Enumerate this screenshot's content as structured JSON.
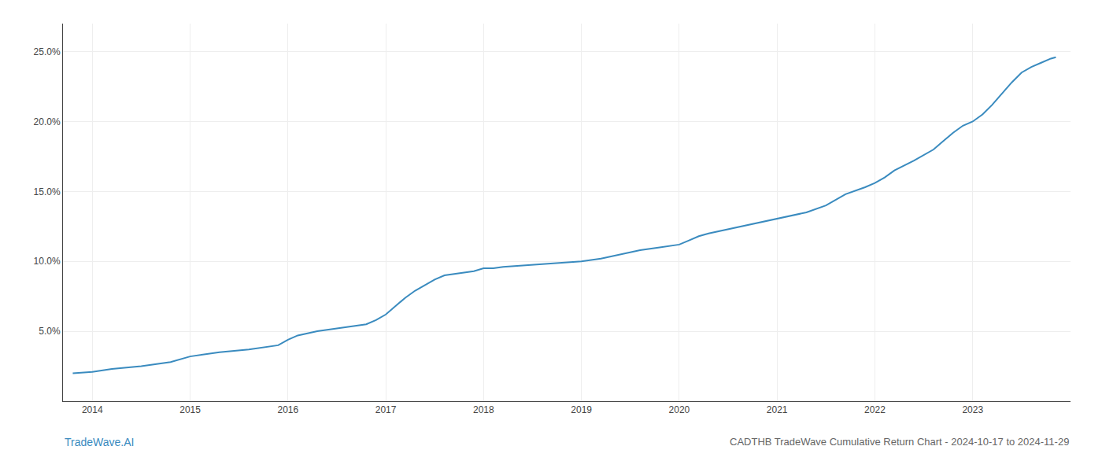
{
  "chart_data": {
    "type": "line",
    "title": "CADTHB TradeWave Cumulative Return Chart - 2024-10-17 to 2024-11-29",
    "annotations": [
      "TradeWave.AI"
    ],
    "color": "#3a8bbf",
    "x": [
      2013.8,
      2014.0,
      2014.2,
      2014.5,
      2014.8,
      2015.0,
      2015.3,
      2015.6,
      2015.9,
      2016.0,
      2016.1,
      2016.3,
      2016.6,
      2016.8,
      2016.9,
      2017.0,
      2017.1,
      2017.2,
      2017.3,
      2017.4,
      2017.5,
      2017.6,
      2017.7,
      2017.8,
      2017.9,
      2018.0,
      2018.1,
      2018.2,
      2018.4,
      2018.6,
      2018.8,
      2019.0,
      2019.2,
      2019.4,
      2019.6,
      2019.8,
      2020.0,
      2020.1,
      2020.2,
      2020.3,
      2020.5,
      2020.7,
      2020.9,
      2021.1,
      2021.3,
      2021.5,
      2021.7,
      2021.9,
      2022.0,
      2022.1,
      2022.2,
      2022.4,
      2022.6,
      2022.7,
      2022.8,
      2022.9,
      2023.0,
      2023.1,
      2023.2,
      2023.3,
      2023.4,
      2023.5,
      2023.6,
      2023.7,
      2023.8,
      2023.85
    ],
    "values": [
      2.0,
      2.1,
      2.3,
      2.5,
      2.8,
      3.2,
      3.5,
      3.7,
      4.0,
      4.4,
      4.7,
      5.0,
      5.3,
      5.5,
      5.8,
      6.2,
      6.8,
      7.4,
      7.9,
      8.3,
      8.7,
      9.0,
      9.1,
      9.2,
      9.3,
      9.5,
      9.5,
      9.6,
      9.7,
      9.8,
      9.9,
      10.0,
      10.2,
      10.5,
      10.8,
      11.0,
      11.2,
      11.5,
      11.8,
      12.0,
      12.3,
      12.6,
      12.9,
      13.2,
      13.5,
      14.0,
      14.8,
      15.3,
      15.6,
      16.0,
      16.5,
      17.2,
      18.0,
      18.6,
      19.2,
      19.7,
      20.0,
      20.5,
      21.2,
      22.0,
      22.8,
      23.5,
      23.9,
      24.2,
      24.5,
      24.6
    ],
    "xlim": [
      2013.7,
      2024.0
    ],
    "ylim": [
      0,
      27
    ],
    "xticks": [
      2014,
      2015,
      2016,
      2017,
      2018,
      2019,
      2020,
      2021,
      2022,
      2023
    ],
    "yticks": [
      {
        "value": 5.0,
        "label": "5.0%"
      },
      {
        "value": 10.0,
        "label": "10.0%"
      },
      {
        "value": 15.0,
        "label": "15.0%"
      },
      {
        "value": 20.0,
        "label": "20.0%"
      },
      {
        "value": 25.0,
        "label": "25.0%"
      }
    ],
    "grid": true
  }
}
